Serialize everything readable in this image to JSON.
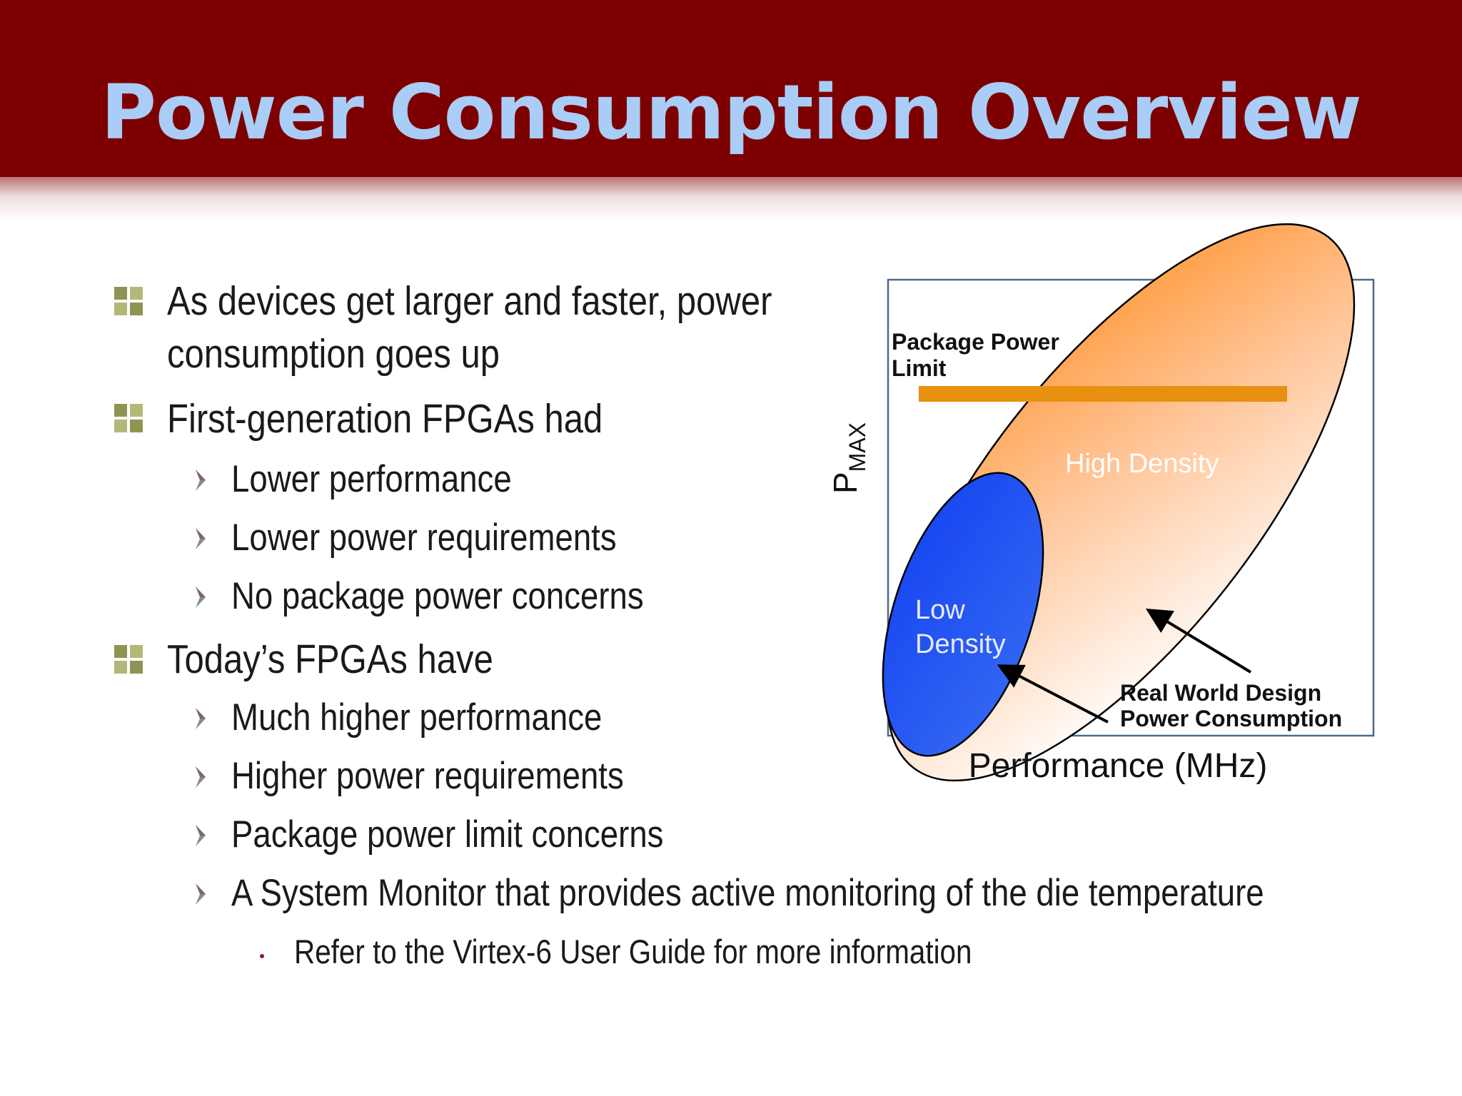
{
  "slide": {
    "title": "Power Consumption Overview"
  },
  "bullets": {
    "b1_line1": "As devices get larger and faster, power",
    "b1_line2": "consumption goes up",
    "b2": "First-generation FPGAs had",
    "b2_subs": [
      "Lower performance",
      "Lower power requirements",
      "No package power concerns"
    ],
    "b3": "Today’s FPGAs have",
    "b3_subs": [
      "Much higher performance",
      "Higher power requirements",
      "Package power limit concerns",
      "A System Monitor that provides active monitoring of the die temperature"
    ],
    "b3_subsub": "Refer to the Virtex-6 User Guide for more information"
  },
  "diagram": {
    "ylabel_main": "P",
    "ylabel_sub": "MAX",
    "xlabel": "Performance (MHz)",
    "package_limit_line1": "Package Power",
    "package_limit_line2": "Limit",
    "high_density": "High Density",
    "low_density_line1": "Low",
    "low_density_line2": "Density",
    "real_world_line1": "Real World Design",
    "real_world_line2": "Power Consumption",
    "colors": {
      "high_density_fill": "#ff9a3c",
      "low_density_fill": "#2255f0",
      "package_limit_bar": "#e8900f",
      "frame": "#4a6a8a"
    }
  }
}
